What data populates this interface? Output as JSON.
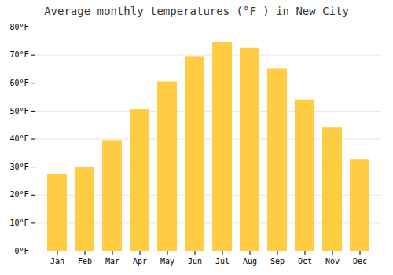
{
  "chart_data": {
    "type": "bar",
    "title": "Average monthly temperatures (°F ) in New City",
    "categories": [
      "Jan",
      "Feb",
      "Mar",
      "Apr",
      "May",
      "Jun",
      "Jul",
      "Aug",
      "Sep",
      "Oct",
      "Nov",
      "Dec"
    ],
    "values": [
      27.5,
      30.0,
      39.5,
      50.5,
      60.5,
      69.5,
      74.5,
      72.5,
      65.0,
      54.0,
      44.0,
      32.5
    ],
    "color": "#FFCC44",
    "ylim": [
      0,
      80
    ],
    "yticks": [
      {
        "value": 0,
        "label": "0°F"
      },
      {
        "value": 10,
        "label": "10°F"
      },
      {
        "value": 20,
        "label": "20°F"
      },
      {
        "value": 30,
        "label": "30°F"
      },
      {
        "value": 40,
        "label": "40°F"
      },
      {
        "value": 50,
        "label": "50°F"
      },
      {
        "value": 60,
        "label": "60°F"
      },
      {
        "value": 70,
        "label": "70°F"
      },
      {
        "value": 80,
        "label": "80°F"
      }
    ],
    "grid": true
  }
}
